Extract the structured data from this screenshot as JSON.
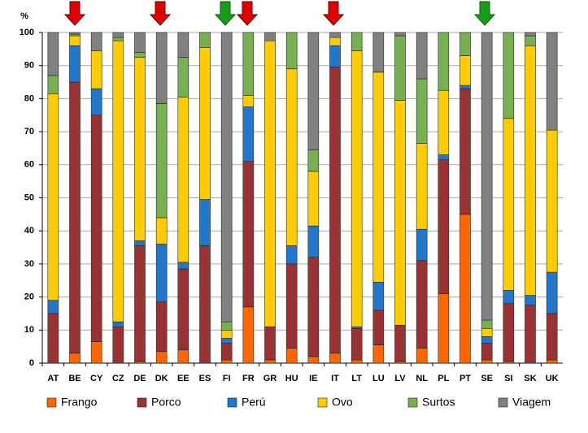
{
  "chart_data": {
    "type": "stacked_bar",
    "y_label": "%",
    "categories": [
      "AT",
      "BE",
      "CY",
      "CZ",
      "DE",
      "DK",
      "EE",
      "ES",
      "FI",
      "FR",
      "GR",
      "HU",
      "IE",
      "IT",
      "LT",
      "LU",
      "LV",
      "NL",
      "PL",
      "PT",
      "SE",
      "SI",
      "SK",
      "UK"
    ],
    "series": [
      {
        "name": "Frango",
        "color": "#ff6600",
        "values": [
          0,
          3,
          6.5,
          0,
          0.5,
          3.5,
          4,
          0,
          1,
          17,
          1,
          4.5,
          2,
          3,
          1,
          5.5,
          0.5,
          4.5,
          21,
          45,
          1,
          0.5,
          0,
          1
        ]
      },
      {
        "name": "Porco",
        "color": "#993333",
        "values": [
          15,
          82,
          68.5,
          11,
          35,
          15,
          24.5,
          35.5,
          5,
          44,
          10,
          25.5,
          30,
          86.5,
          9.5,
          10.5,
          11,
          26.5,
          40.5,
          38,
          5,
          17.5,
          17.5,
          14
        ]
      },
      {
        "name": "Perú",
        "color": "#2277cc",
        "values": [
          4,
          11,
          8,
          1.5,
          1.5,
          17.5,
          2,
          14,
          1.5,
          16.5,
          0,
          5.5,
          9.5,
          6.5,
          0.5,
          8.5,
          0,
          9.5,
          1.5,
          1,
          2,
          4,
          3,
          12.5
        ]
      },
      {
        "name": "Ovo",
        "color": "#ffcc00",
        "values": [
          62.5,
          3,
          11.5,
          85,
          55.5,
          8,
          50,
          46,
          2.5,
          3.5,
          86.5,
          53.5,
          16.5,
          2.5,
          83.5,
          63.5,
          68,
          26,
          19.5,
          9,
          2.5,
          52,
          75.5,
          43
        ]
      },
      {
        "name": "Surtos",
        "color": "#77b050",
        "values": [
          5.5,
          0.5,
          0,
          1,
          1.5,
          34.5,
          12,
          4.5,
          2.5,
          19,
          0,
          11,
          6.5,
          0,
          5.5,
          0,
          19.5,
          19.5,
          17.5,
          7,
          2.5,
          26,
          3,
          0
        ]
      },
      {
        "name": "Viagem",
        "color": "#808080",
        "values": [
          13,
          0.5,
          5.5,
          1.5,
          6,
          21.5,
          7.5,
          0,
          87.5,
          0,
          2.5,
          0,
          35.5,
          1.5,
          0,
          12,
          1,
          14,
          0,
          0,
          87,
          0,
          1,
          29.5
        ]
      }
    ],
    "ylim": [
      0,
      100
    ],
    "yticks": [
      0,
      10,
      20,
      30,
      40,
      50,
      60,
      70,
      80,
      90,
      100
    ],
    "grid": true,
    "legend": "bottom"
  }
}
